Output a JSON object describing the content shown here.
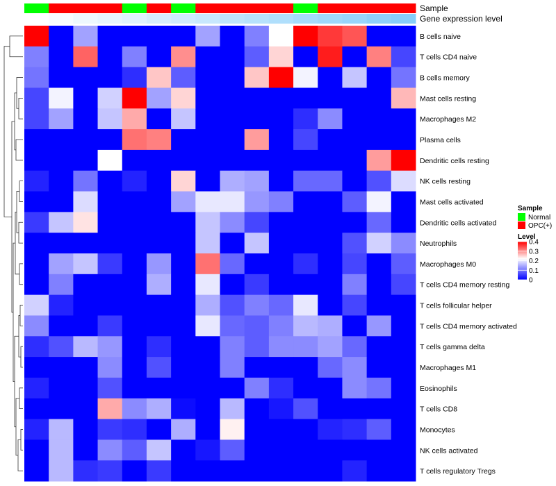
{
  "chart_data": {
    "type": "heatmap",
    "title": "",
    "annotation_rows": [
      {
        "name": "Sample",
        "values": [
          "Normal",
          "OPC(+)",
          "OPC(+)",
          "OPC(+)",
          "Normal",
          "OPC(+)",
          "Normal",
          "OPC(+)",
          "OPC(+)",
          "OPC(+)",
          "OPC(+)",
          "Normal",
          "OPC(+)",
          "OPC(+)",
          "OPC(+)",
          "OPC(+)"
        ]
      },
      {
        "name": "Gene expression level",
        "values": [
          0.0,
          0.03,
          0.07,
          0.1,
          0.13,
          0.17,
          0.2,
          0.23,
          0.27,
          0.3,
          0.33,
          0.37,
          0.4,
          0.43,
          0.47,
          0.5
        ]
      }
    ],
    "rows": [
      "B cells naive",
      "T cells CD4 naive",
      "B cells memory",
      "Mast cells resting",
      "Macrophages M2",
      "Plasma cells",
      "Dendritic cells resting",
      "NK cells resting",
      "Mast cells activated",
      "Dendritic cells activated",
      "Neutrophils",
      "Macrophages M0",
      "T cells CD4 memory resting",
      "T cells follicular helper",
      "T cells CD4 memory activated",
      "T cells gamma delta",
      "Macrophages M1",
      "Eosinophils",
      "T cells CD8",
      "Monocytes",
      "NK cells activated",
      "T cells regulatory  Tregs"
    ],
    "values": [
      [
        0.4,
        0.0,
        0.14,
        0.0,
        0.0,
        0.0,
        0.0,
        0.14,
        0.0,
        0.11,
        0.22,
        0.4,
        0.36,
        0.34,
        0.0,
        0.0
      ],
      [
        0.11,
        0.0,
        0.33,
        0.0,
        0.11,
        0.0,
        0.3,
        0.0,
        0.0,
        0.08,
        0.25,
        0.0,
        0.38,
        0.0,
        0.31,
        0.06
      ],
      [
        0.1,
        0.0,
        0.0,
        0.0,
        0.04,
        0.26,
        0.08,
        0.0,
        0.0,
        0.26,
        0.4,
        0.21,
        0.0,
        0.17,
        0.0,
        0.1
      ],
      [
        0.06,
        0.21,
        0.0,
        0.18,
        0.4,
        0.14,
        0.25,
        0.0,
        0.0,
        0.0,
        0.0,
        0.0,
        0.0,
        0.0,
        0.0,
        0.27
      ],
      [
        0.06,
        0.14,
        0.0,
        0.17,
        0.28,
        0.0,
        0.17,
        0.0,
        0.0,
        0.0,
        0.0,
        0.04,
        0.12,
        0.0,
        0.0,
        0.0
      ],
      [
        0.0,
        0.0,
        0.0,
        0.0,
        0.32,
        0.31,
        0.0,
        0.0,
        0.0,
        0.29,
        0.0,
        0.06,
        0.0,
        0.0,
        0.0,
        0.0
      ],
      [
        0.0,
        0.0,
        0.0,
        0.22,
        0.0,
        0.0,
        0.0,
        0.0,
        0.0,
        0.0,
        0.0,
        0.0,
        0.0,
        0.0,
        0.29,
        0.4
      ],
      [
        0.03,
        0.0,
        0.1,
        0.0,
        0.03,
        0.0,
        0.25,
        0.0,
        0.15,
        0.14,
        0.0,
        0.09,
        0.09,
        0.0,
        0.07,
        0.19
      ],
      [
        0.0,
        0.0,
        0.19,
        0.0,
        0.0,
        0.0,
        0.14,
        0.2,
        0.2,
        0.13,
        0.11,
        0.0,
        0.0,
        0.08,
        0.21,
        0.0
      ],
      [
        0.05,
        0.17,
        0.24,
        0.0,
        0.0,
        0.0,
        0.0,
        0.17,
        0.12,
        0.06,
        0.0,
        0.0,
        0.0,
        0.0,
        0.09,
        0.0
      ],
      [
        0.0,
        0.0,
        0.0,
        0.0,
        0.0,
        0.0,
        0.0,
        0.17,
        0.0,
        0.17,
        0.0,
        0.0,
        0.0,
        0.07,
        0.18,
        0.12
      ],
      [
        0.0,
        0.14,
        0.17,
        0.05,
        0.0,
        0.13,
        0.0,
        0.32,
        0.09,
        0.0,
        0.0,
        0.04,
        0.0,
        0.06,
        0.0,
        0.08
      ],
      [
        0.0,
        0.11,
        0.0,
        0.0,
        0.0,
        0.15,
        0.0,
        0.2,
        0.0,
        0.05,
        0.0,
        0.0,
        0.0,
        0.11,
        0.0,
        0.06
      ],
      [
        0.18,
        0.03,
        0.0,
        0.0,
        0.0,
        0.0,
        0.0,
        0.15,
        0.07,
        0.11,
        0.09,
        0.2,
        0.0,
        0.06,
        0.0,
        0.0
      ],
      [
        0.12,
        0.0,
        0.0,
        0.05,
        0.0,
        0.0,
        0.0,
        0.2,
        0.09,
        0.08,
        0.11,
        0.16,
        0.15,
        0.0,
        0.13,
        0.0
      ],
      [
        0.04,
        0.07,
        0.16,
        0.13,
        0.0,
        0.04,
        0.0,
        0.0,
        0.11,
        0.08,
        0.12,
        0.12,
        0.14,
        0.09,
        0.0,
        0.0
      ],
      [
        0.0,
        0.0,
        0.0,
        0.12,
        0.0,
        0.07,
        0.0,
        0.0,
        0.11,
        0.0,
        0.0,
        0.0,
        0.09,
        0.12,
        0.0,
        0.0
      ],
      [
        0.03,
        0.0,
        0.0,
        0.07,
        0.0,
        0.0,
        0.0,
        0.0,
        0.0,
        0.11,
        0.04,
        0.0,
        0.0,
        0.12,
        0.1,
        0.0
      ],
      [
        0.0,
        0.0,
        0.0,
        0.28,
        0.12,
        0.15,
        0.01,
        0.0,
        0.16,
        0.0,
        0.02,
        0.07,
        0.0,
        0.0,
        0.0,
        0.0
      ],
      [
        0.03,
        0.16,
        0.0,
        0.05,
        0.04,
        0.0,
        0.15,
        0.0,
        0.23,
        0.0,
        0.0,
        0.0,
        0.03,
        0.04,
        0.08,
        0.0
      ],
      [
        0.0,
        0.16,
        0.0,
        0.12,
        0.08,
        0.17,
        0.0,
        0.02,
        0.08,
        0.0,
        0.0,
        0.0,
        0.0,
        0.0,
        0.0,
        0.0
      ],
      [
        0.0,
        0.16,
        0.04,
        0.05,
        0.0,
        0.05,
        0.0,
        0.0,
        0.0,
        0.0,
        0.0,
        0.0,
        0.0,
        0.03,
        0.0,
        0.0
      ]
    ],
    "color_scale": {
      "min": 0,
      "max": 0.4,
      "low_color": "#0000ff",
      "mid_color": "#ffffff",
      "mid_value": 0.22,
      "high_color": "#ff0000"
    },
    "sample_colors": {
      "Normal": "#00ff00",
      "OPC(+)": "#ff0000"
    },
    "gene_level_colors": {
      "low": "#ffffff",
      "high": "#87cefa"
    },
    "legend": {
      "sample_title": "Sample",
      "sample_entries": [
        "Normal",
        "OPC(+)"
      ],
      "level_title": "Level",
      "level_ticks": [
        0,
        0.1,
        0.2,
        0.3,
        0.4
      ],
      "level_tick_labels": [
        "0",
        "0.1",
        "0.2",
        "0.3",
        "0.4"
      ],
      "placement": "right"
    },
    "row_dendrogram": true,
    "column_dendrogram": false
  }
}
